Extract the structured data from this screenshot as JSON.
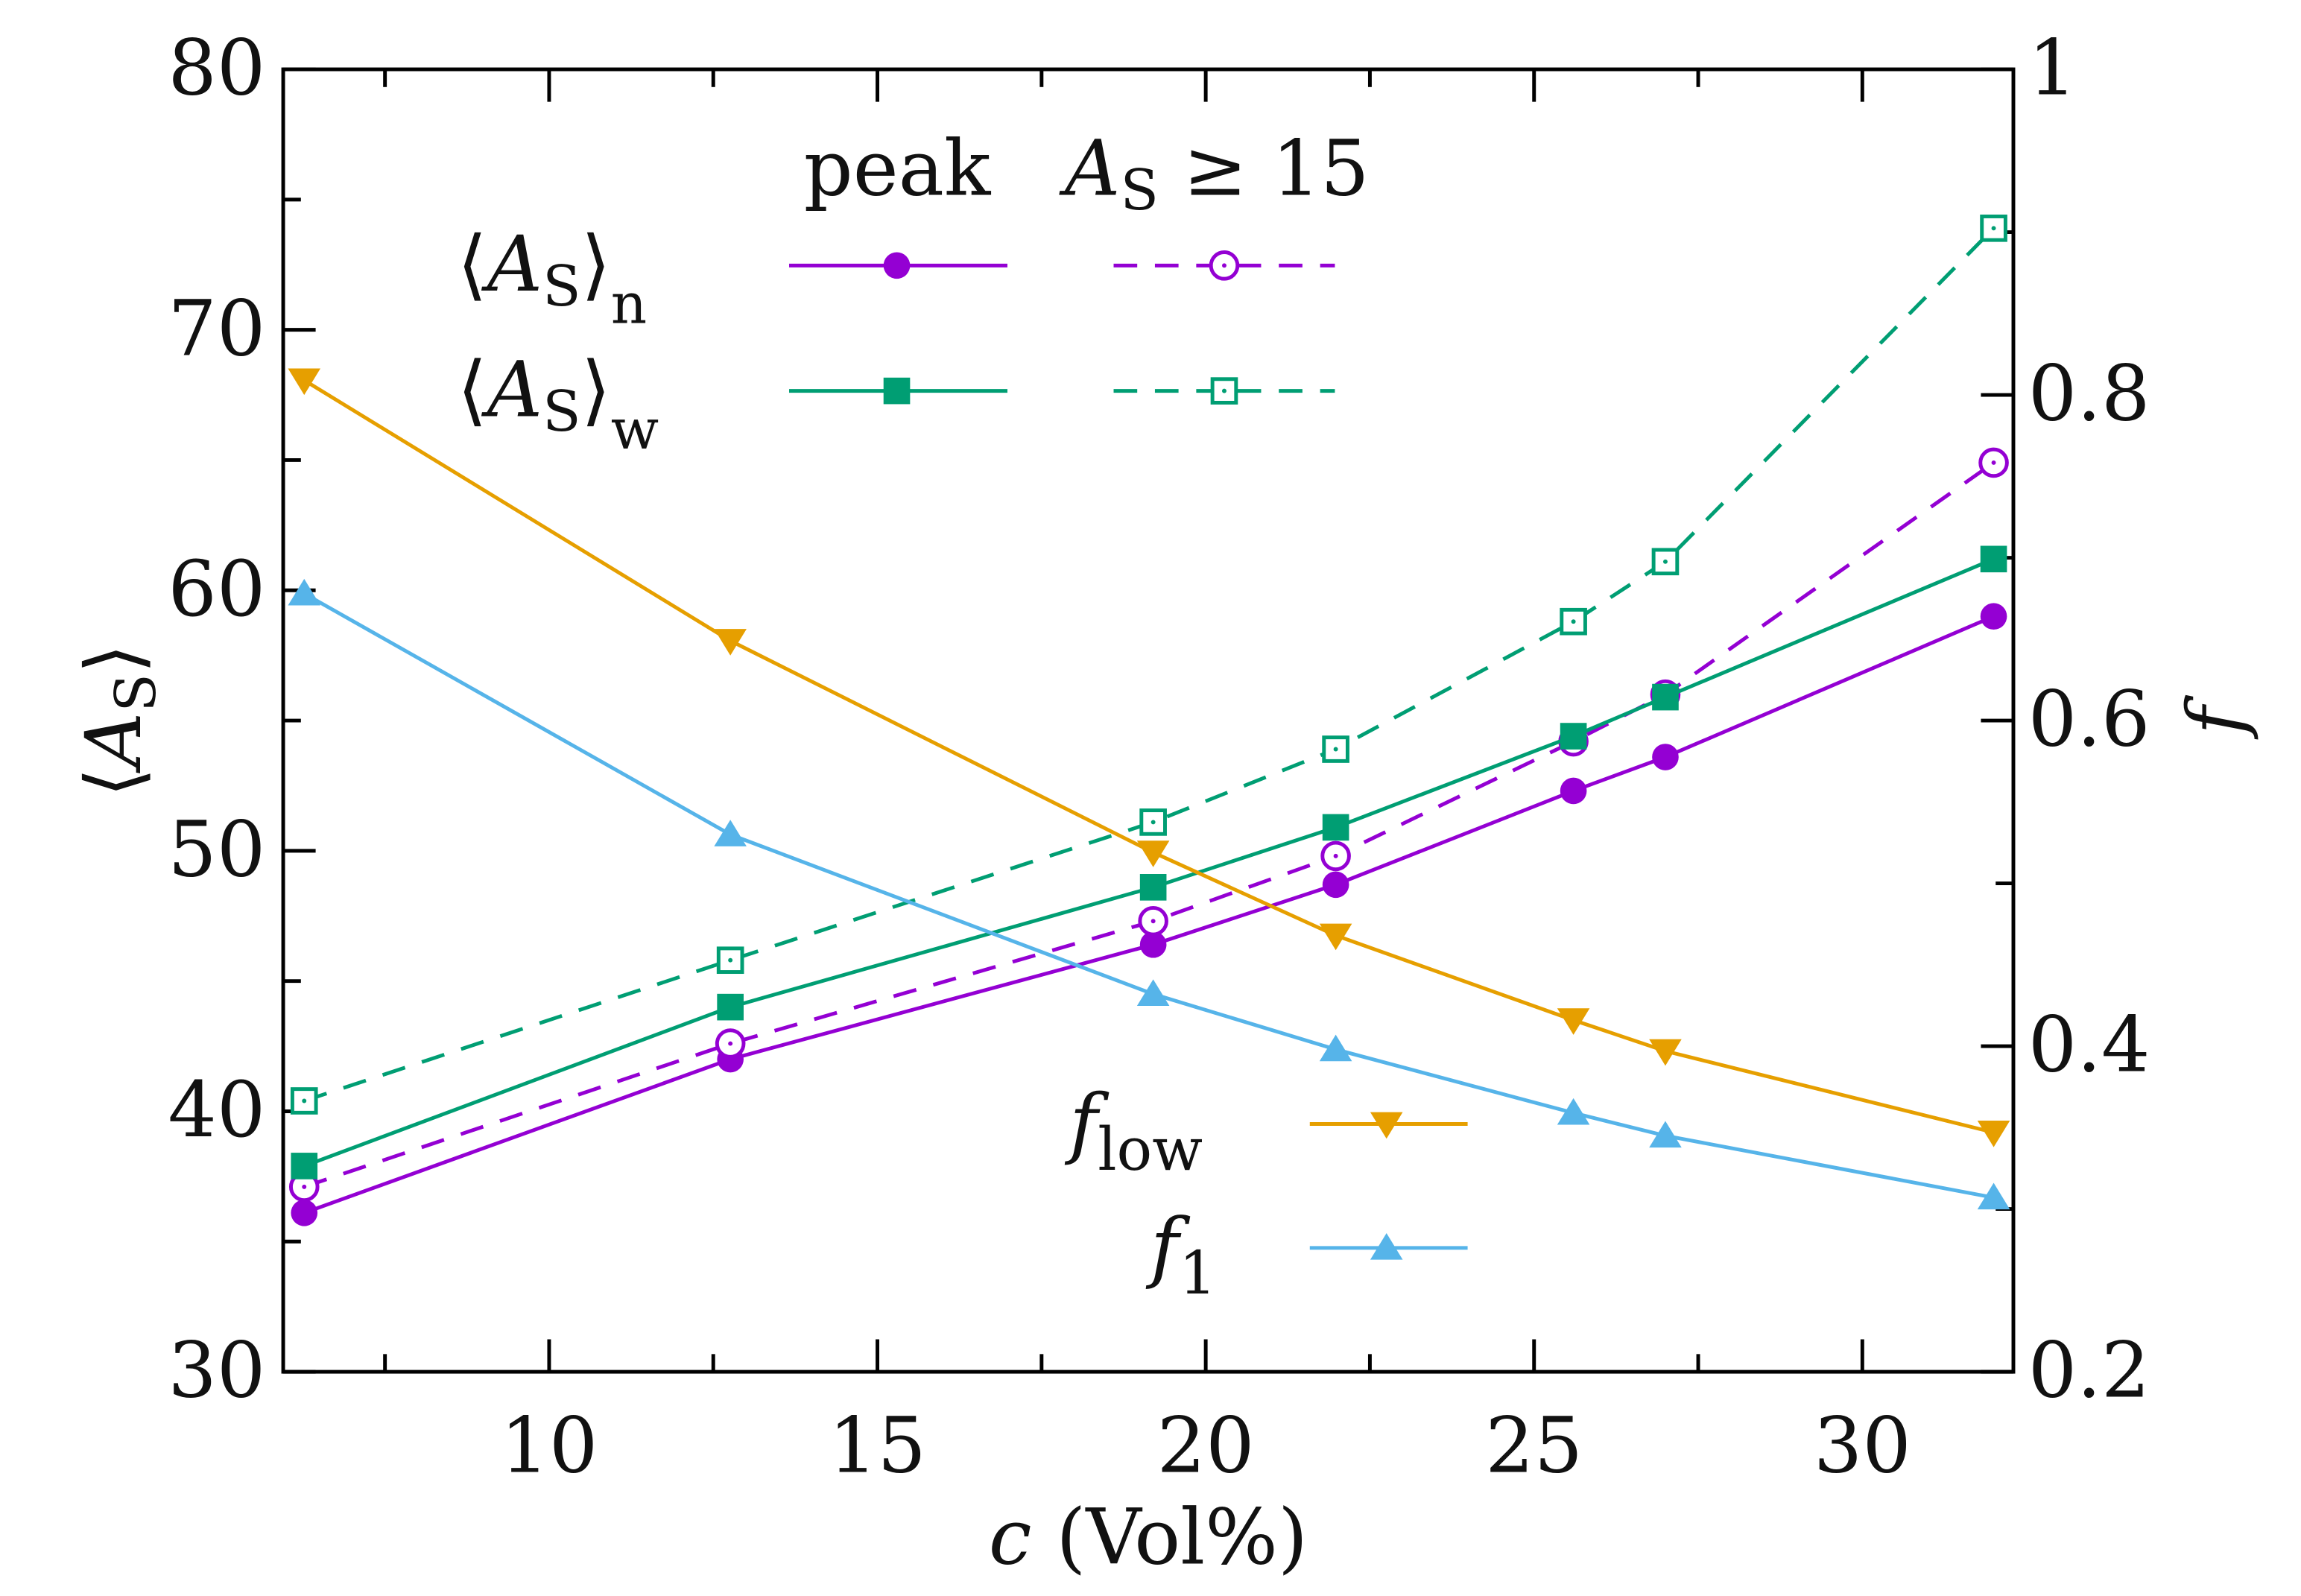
{
  "chart_data": {
    "type": "line",
    "xlabel": {
      "var": "c",
      "unit": " (Vol%)"
    },
    "ylabel_left": {
      "open": "⟨",
      "var": "A",
      "sub": "S",
      "close": "⟩"
    },
    "ylabel_right": "f",
    "xlim": [
      5.95,
      32.3
    ],
    "ylim_left": [
      30,
      80
    ],
    "ylim_right": [
      0.2,
      1.0
    ],
    "x_ticks": [
      10,
      15,
      20,
      25,
      30
    ],
    "y_left_ticks": [
      30,
      40,
      50,
      60,
      70,
      80
    ],
    "y_right_ticks": [
      "0.2",
      "0.4",
      "0.6",
      "0.8",
      "1"
    ],
    "x": [
      6.27,
      12.76,
      19.2,
      21.98,
      25.6,
      27.0,
      32.0
    ],
    "legend_headers": {
      "col1": "peak",
      "col2_var": "A",
      "col2_sub": "S",
      "col2_rest": " ≥ 15"
    },
    "series": [
      {
        "name": "<A_S>_n peak",
        "axis": "left",
        "color": "#9400d3",
        "dash": false,
        "marker": "circle-filled",
        "values": [
          36.1,
          42.0,
          46.4,
          48.7,
          52.3,
          53.6,
          59.0
        ]
      },
      {
        "name": "<A_S>_n A_S>=15",
        "axis": "left",
        "color": "#9400d3",
        "dash": true,
        "marker": "circle-open",
        "values": [
          37.1,
          42.6,
          47.3,
          49.8,
          54.2,
          56.0,
          64.9
        ]
      },
      {
        "name": "<A_S>_w peak",
        "axis": "left",
        "color": "#009e73",
        "dash": false,
        "marker": "square-filled",
        "values": [
          37.9,
          44.0,
          48.6,
          50.9,
          54.4,
          55.9,
          61.2
        ]
      },
      {
        "name": "<A_S>_w A_S>=15",
        "axis": "left",
        "color": "#009e73",
        "dash": true,
        "marker": "square-open",
        "values": [
          40.4,
          45.8,
          51.1,
          53.9,
          58.8,
          61.1,
          73.9
        ]
      },
      {
        "name": "f_low",
        "axis": "right",
        "color": "#e69f00",
        "dash": false,
        "marker": "triangle-down",
        "values": [
          0.809,
          0.649,
          0.519,
          0.468,
          0.416,
          0.397,
          0.347
        ]
      },
      {
        "name": "f_1",
        "axis": "right",
        "color": "#56b4e9",
        "dash": false,
        "marker": "triangle-up",
        "values": [
          0.678,
          0.53,
          0.432,
          0.398,
          0.359,
          0.345,
          0.307
        ]
      }
    ],
    "legend_rows": [
      {
        "open": "⟨",
        "var": "A",
        "sub": "S",
        "close": "⟩",
        "sub2": "n"
      },
      {
        "open": "⟨",
        "var": "A",
        "sub": "S",
        "close": "⟩",
        "sub2": "w"
      }
    ],
    "f_legend": [
      {
        "var": "f",
        "sub": "low"
      },
      {
        "var": "f",
        "sub": "1"
      }
    ],
    "grid": false
  }
}
